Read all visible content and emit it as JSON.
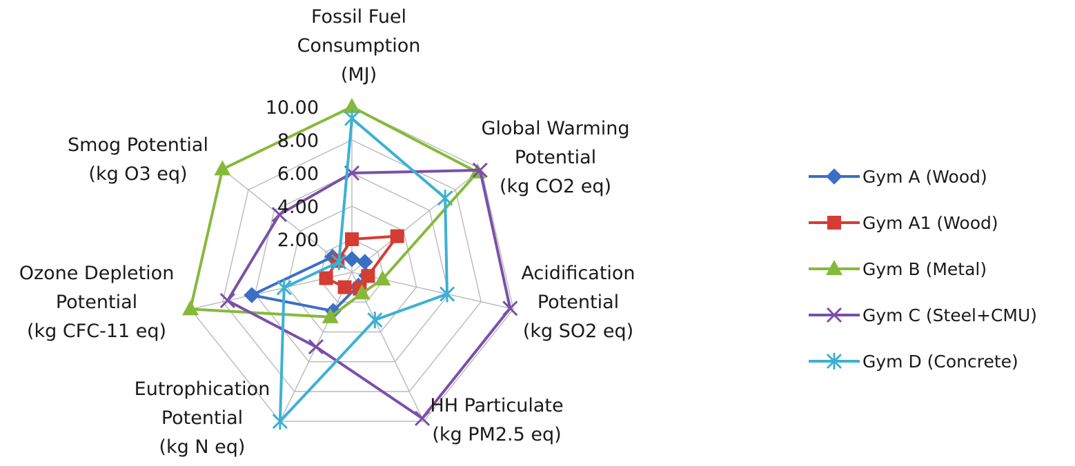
{
  "chart_data": {
    "type": "radar",
    "axes": [
      {
        "lines": [
          "Fossil Fuel",
          "Consumption",
          "(MJ)"
        ]
      },
      {
        "lines": [
          "Global Warming",
          "Potential",
          "(kg CO2 eq)"
        ]
      },
      {
        "lines": [
          "Acidification",
          "Potential",
          "(kg SO2 eq)"
        ]
      },
      {
        "lines": [
          "HH Particulate",
          "(kg PM2.5 eq)"
        ]
      },
      {
        "lines": [
          "Eutrophication",
          "Potential",
          "(kg N eq)"
        ]
      },
      {
        "lines": [
          "Ozone Depletion",
          "Potential",
          "(kg CFC-11 eq)"
        ]
      },
      {
        "lines": [
          "Smog Potential",
          "(kg O3 eq)"
        ]
      }
    ],
    "ticks": [
      2,
      4,
      6,
      8,
      10
    ],
    "tick_labels": [
      "2.00",
      "4.00",
      "6.00",
      "8.00",
      "10.00"
    ],
    "rlim": [
      0,
      10
    ],
    "grid": true,
    "legend_position": "right",
    "series": [
      {
        "name": "Gym A (Wood)",
        "color": "#3a6fc6",
        "marker": "diamond",
        "values": [
          0.8,
          1.0,
          0.9,
          0.9,
          2.6,
          6.2,
          1.5
        ]
      },
      {
        "name": "Gym A1 (Wood)",
        "color": "#d43c34",
        "marker": "square",
        "values": [
          2.0,
          3.5,
          1.0,
          1.1,
          1.0,
          1.6,
          1.1
        ]
      },
      {
        "name": "Gym B (Metal)",
        "color": "#86b93a",
        "marker": "triangle",
        "values": [
          10.0,
          9.7,
          1.9,
          1.4,
          3.0,
          10.0,
          10.0
        ]
      },
      {
        "name": "Gym C (Steel+CMU)",
        "color": "#7a4fa8",
        "marker": "x",
        "values": [
          6.0,
          9.9,
          9.8,
          9.8,
          5.0,
          7.7,
          5.6
        ]
      },
      {
        "name": "Gym D (Concrete)",
        "color": "#3db0d3",
        "marker": "asterisk",
        "values": [
          9.3,
          7.2,
          5.9,
          3.2,
          10.0,
          4.2,
          1.0
        ]
      }
    ]
  }
}
